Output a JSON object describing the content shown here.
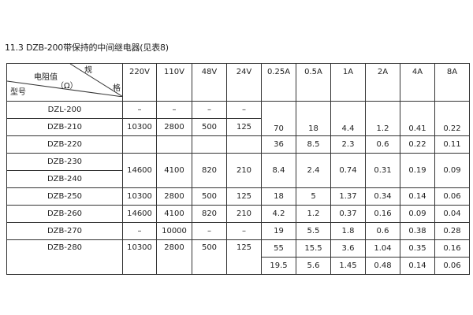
{
  "title": "11.3 DZB-200带保持的中间继电器(见表8)",
  "header": {
    "diag_top": "规",
    "diag_mid": "电阻值",
    "diag_unit": "（Ω）",
    "diag_bottom": "型号",
    "diag_right": "格",
    "columns": [
      "220V",
      "110V",
      "48V",
      "24V",
      "0.25A",
      "0.5A",
      "1A",
      "2A",
      "4A",
      "8A"
    ]
  },
  "rows": {
    "dzl200": {
      "model": "DZL-200",
      "v": [
        "–",
        "–",
        "–",
        "–"
      ]
    },
    "dzb210": {
      "model": "DZB-210",
      "v": [
        "10300",
        "2800",
        "500",
        "125"
      ],
      "a": [
        "70",
        "18",
        "4.4",
        "1.2",
        "0.41",
        "0.22"
      ]
    },
    "dzb220": {
      "model": "DZB-220",
      "a": [
        "36",
        "8.5",
        "2.3",
        "0.6",
        "0.22",
        "0.11"
      ]
    },
    "dzb230": {
      "model": "DZB-230",
      "v": [
        "14600",
        "4100",
        "820",
        "210"
      ],
      "a": [
        "8.4",
        "2.4",
        "0.74",
        "0.31",
        "0.19",
        "0.09"
      ]
    },
    "dzb240": {
      "model": "DZB-240"
    },
    "dzb250": {
      "model": "DZB-250",
      "v": [
        "10300",
        "2800",
        "500",
        "125"
      ],
      "a": [
        "18",
        "5",
        "1.37",
        "0.34",
        "0.14",
        "0.06"
      ]
    },
    "dzb260": {
      "model": "DZB-260",
      "v": [
        "14600",
        "4100",
        "820",
        "210"
      ],
      "a": [
        "4.2",
        "1.2",
        "0.37",
        "0.16",
        "0.09",
        "0.04"
      ]
    },
    "dzb270": {
      "model": "DZB-270",
      "v": [
        "–",
        "10000",
        "–",
        "–"
      ],
      "a": [
        "19",
        "5.5",
        "1.8",
        "0.6",
        "0.38",
        "0.28"
      ]
    },
    "dzb280": {
      "model": "DZB-280",
      "v": [
        "10300",
        "2800",
        "500",
        "125"
      ],
      "a": [
        "55",
        "15.5",
        "3.6",
        "1.04",
        "0.35",
        "0.16"
      ],
      "a2": [
        "19.5",
        "5.6",
        "1.45",
        "0.48",
        "0.14",
        "0.06"
      ]
    }
  }
}
